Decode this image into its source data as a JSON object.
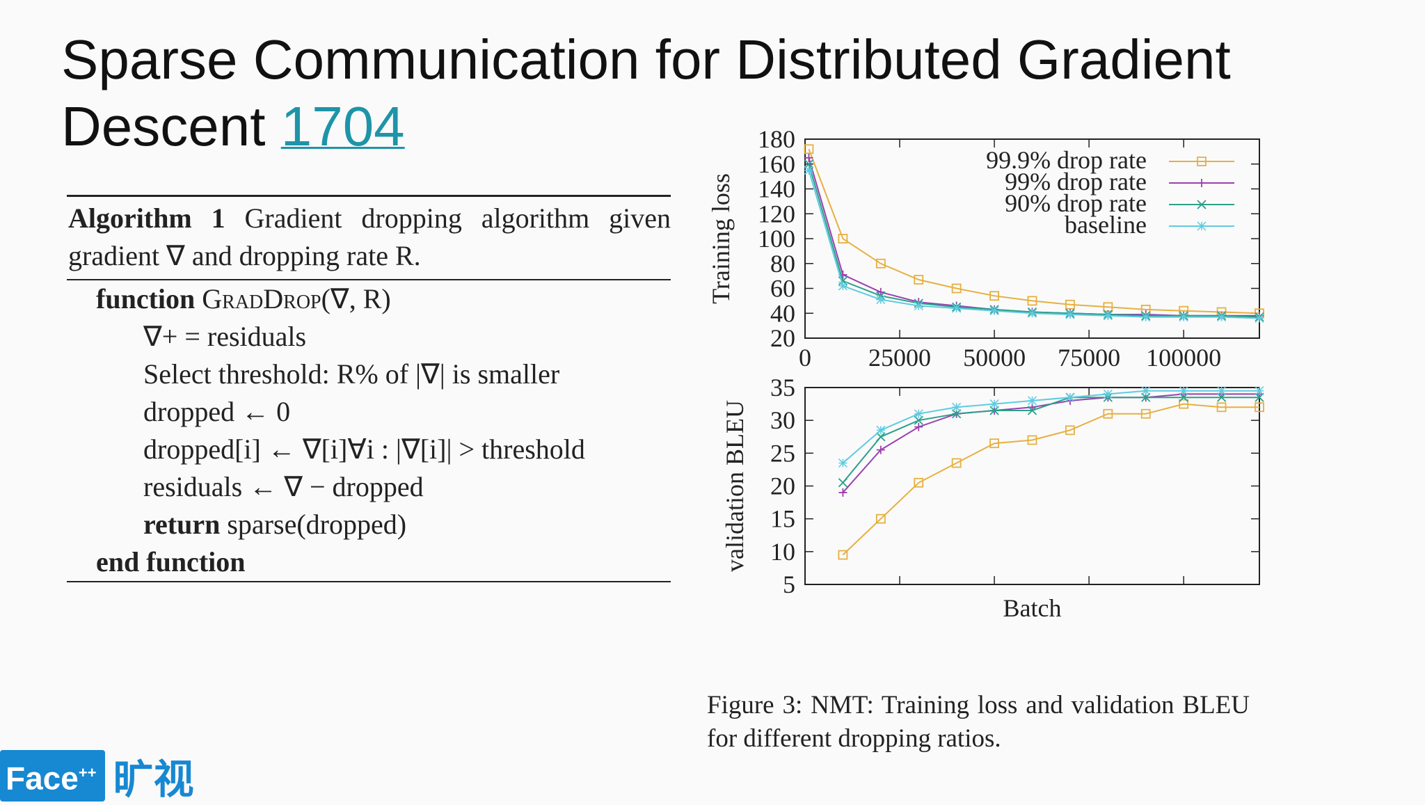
{
  "title": {
    "text": "Sparse Communication for Distributed Gradient Descent ",
    "link": "1704"
  },
  "algorithm": {
    "label": "Algorithm 1",
    "caption": "Gradient dropping algorithm given gradient ∇ and dropping rate R.",
    "lines": [
      {
        "kw": "function",
        "text": "GradDrop(∇, R)"
      },
      {
        "text": "∇+ = residuals"
      },
      {
        "text": "Select threshold: R% of |∇| is smaller"
      },
      {
        "text": "dropped ← 0"
      },
      {
        "text": "dropped[i] ← ∇[i]∀i : |∇[i]| > threshold"
      },
      {
        "text": "residuals ← ∇ − dropped"
      },
      {
        "kw": "return",
        "text": "sparse(dropped)"
      },
      {
        "kw": "end function",
        "text": ""
      }
    ]
  },
  "figure_caption": "Figure 3: NMT: Training loss and validation BLEU for different dropping ratios.",
  "logo": {
    "text": "Face",
    "sup": "++",
    "cn": "旷视"
  },
  "colors": {
    "accent": "#1e94a8",
    "logo": "#1788d2",
    "s999": "#e6b040",
    "s99": "#9b3fb0",
    "s90": "#2aa08a",
    "baseline": "#5ecbe0"
  },
  "chart_data": [
    {
      "type": "line",
      "ylabel": "Training loss",
      "xlabel": "",
      "xlim": [
        0,
        120000
      ],
      "ylim": [
        20,
        180
      ],
      "xticks": [
        "0",
        "25000",
        "50000",
        "75000",
        "100000"
      ],
      "xtick_values": [
        0,
        25000,
        50000,
        75000,
        100000
      ],
      "yticks": [
        "20",
        "40",
        "60",
        "80",
        "100",
        "120",
        "140",
        "160",
        "180"
      ],
      "legend_position": "top-right",
      "x": [
        1000,
        10000,
        20000,
        30000,
        40000,
        50000,
        60000,
        70000,
        80000,
        90000,
        100000,
        110000,
        120000
      ],
      "series": [
        {
          "name": "99.9% drop rate",
          "marker": "square",
          "color": "#e6b040",
          "values": [
            172,
            100,
            80,
            67,
            60,
            54,
            50,
            47,
            45,
            43,
            42,
            41,
            40
          ]
        },
        {
          "name": "99% drop rate",
          "marker": "plus",
          "color": "#9b3fb0",
          "values": [
            165,
            71,
            57,
            49,
            46,
            43,
            41,
            40,
            39,
            39,
            38,
            38,
            38
          ]
        },
        {
          "name": "90% drop rate",
          "marker": "cross",
          "color": "#2aa08a",
          "values": [
            160,
            66,
            54,
            48,
            45,
            43,
            41,
            40,
            39,
            38,
            38,
            38,
            37
          ]
        },
        {
          "name": "baseline",
          "marker": "star",
          "color": "#5ecbe0",
          "values": [
            155,
            62,
            51,
            46,
            44,
            42,
            40,
            39,
            38,
            37,
            37,
            37,
            36
          ]
        }
      ]
    },
    {
      "type": "line",
      "ylabel": "validation BLEU",
      "xlabel": "Batch",
      "xlim": [
        0,
        120000
      ],
      "ylim": [
        5,
        35
      ],
      "yticks": [
        "5",
        "10",
        "15",
        "20",
        "25",
        "30",
        "35"
      ],
      "x": [
        10000,
        20000,
        30000,
        40000,
        50000,
        60000,
        70000,
        80000,
        90000,
        100000,
        110000,
        120000
      ],
      "series": [
        {
          "name": "99.9% drop rate",
          "marker": "square",
          "color": "#e6b040",
          "values": [
            9.5,
            15,
            20.5,
            23.5,
            26.5,
            27,
            28.5,
            31,
            31,
            32.5,
            32,
            32
          ]
        },
        {
          "name": "99% drop rate",
          "marker": "plus",
          "color": "#9b3fb0",
          "values": [
            19,
            25.5,
            29,
            31,
            31.5,
            32,
            33,
            33.5,
            33.5,
            34,
            34,
            34
          ]
        },
        {
          "name": "90% drop rate",
          "marker": "cross",
          "color": "#2aa08a",
          "values": [
            20.5,
            27.5,
            30,
            31,
            31.5,
            31.5,
            33.5,
            33.5,
            33.5,
            33.5,
            33.5,
            33.5
          ]
        },
        {
          "name": "baseline",
          "marker": "star",
          "color": "#5ecbe0",
          "values": [
            23.5,
            28.5,
            31,
            32,
            32.5,
            33,
            33.5,
            34,
            34.5,
            34.5,
            34.5,
            34.5
          ]
        }
      ]
    }
  ]
}
